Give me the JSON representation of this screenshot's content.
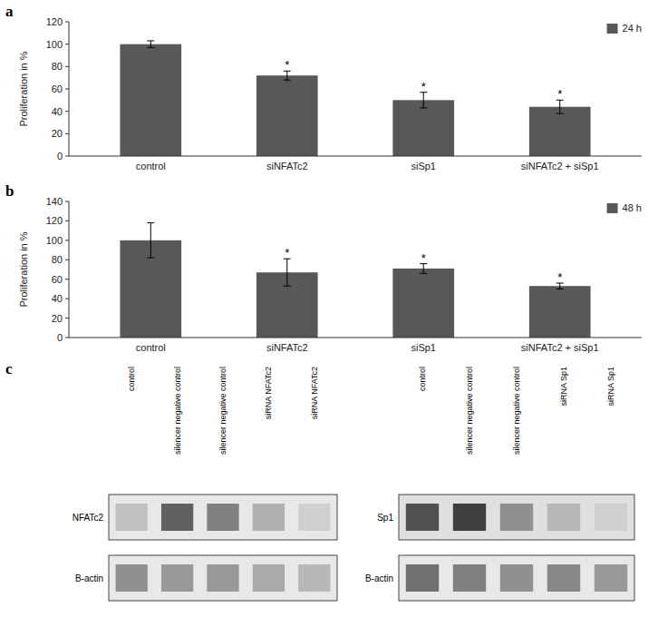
{
  "chart_data": [
    {
      "type": "bar",
      "title": "a",
      "categories": [
        "control",
        "siNFATc2",
        "siSp1",
        "siNFATc2 + siSp1"
      ],
      "series": [
        {
          "name": "24 h",
          "color": "#585858",
          "values": [
            100,
            72,
            50,
            44
          ],
          "errors": [
            3,
            4,
            7,
            6
          ]
        }
      ],
      "annotations": [
        null,
        "*",
        "*",
        "*"
      ],
      "ylabel": "Proliferation in %",
      "ylim": [
        0,
        120
      ],
      "yticks": [
        0,
        20,
        40,
        60,
        80,
        100,
        120
      ],
      "legend": "upper right",
      "grid": false
    },
    {
      "type": "bar",
      "title": "b",
      "categories": [
        "control",
        "siNFATc2",
        "siSp1",
        "siNFATc2 + siSp1"
      ],
      "series": [
        {
          "name": "48 h",
          "color": "#585858",
          "values": [
            100,
            67,
            71,
            53
          ],
          "errors": [
            18,
            14,
            5,
            3
          ]
        }
      ],
      "annotations": [
        null,
        "*",
        "*",
        "*"
      ],
      "ylabel": "Proliferation in %",
      "ylim": [
        0,
        140
      ],
      "yticks": [
        0,
        20,
        40,
        60,
        80,
        100,
        120,
        140
      ],
      "legend": "upper right",
      "grid": false
    },
    {
      "type": "blot",
      "title": "c",
      "categories": [
        "control",
        "silencer negative control",
        "silencer negative control",
        "siRNA NFATc2",
        "siRNA NFATc2"
      ],
      "series": [
        {
          "name": "NFATc2",
          "color": "#e8e8e8",
          "colors": [
            "#c0c0c0",
            "#606060",
            "#808080",
            "#b0b0b0",
            "#d0d0d0"
          ]
        },
        {
          "name": "B-actin",
          "color": "#e8e8e8",
          "colors": [
            "#909090",
            "#999999",
            "#999999",
            "#aaaaaa",
            "#b8b8b8"
          ]
        }
      ]
    },
    {
      "type": "blot",
      "categories": [
        "control",
        "silencer negative control",
        "silencer negative control",
        "siRNA Sp1",
        "siRNA Sp1"
      ],
      "series": [
        {
          "name": "Sp1",
          "color": "#e0e0e0",
          "colors": [
            "#505050",
            "#404040",
            "#909090",
            "#b8b8b8",
            "#d0d0d0"
          ]
        },
        {
          "name": "B-actin",
          "color": "#e8e8e8",
          "colors": [
            "#707070",
            "#808080",
            "#909090",
            "#888888",
            "#999999"
          ]
        }
      ]
    }
  ]
}
